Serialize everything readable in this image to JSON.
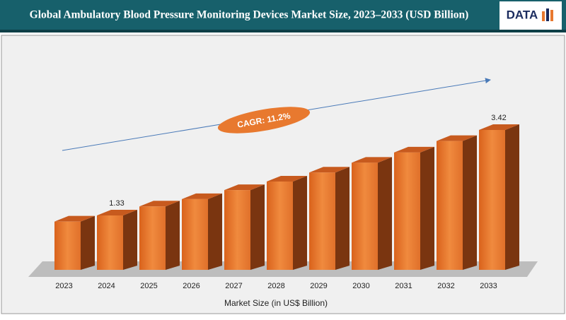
{
  "chart_data": {
    "type": "bar3d",
    "title": "Global Ambulatory Blood Pressure Monitoring Devices Market Size, 2023–2033 (USD Billion)",
    "logo": "DATA",
    "x_label": "Market Size (in US$ Billion)",
    "annotation": "CAGR: 11.2%",
    "categories": [
      "2023",
      "2024",
      "2025",
      "2026",
      "2027",
      "2028",
      "2029",
      "2030",
      "2031",
      "2032",
      "2033"
    ],
    "values": [
      1.18,
      1.33,
      1.55,
      1.73,
      1.95,
      2.16,
      2.38,
      2.62,
      2.87,
      3.15,
      3.42
    ],
    "value_labels": [
      null,
      "1.33",
      null,
      null,
      null,
      null,
      null,
      null,
      null,
      null,
      "3.42"
    ],
    "color": "#e8792f",
    "side_color": "#7a3510"
  }
}
